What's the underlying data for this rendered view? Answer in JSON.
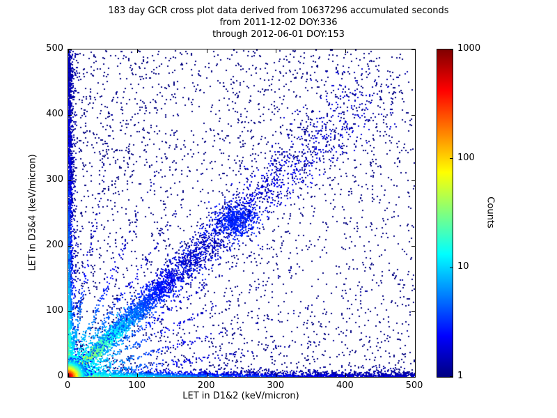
{
  "chart_data": {
    "type": "scatter-density",
    "title": "183 day GCR cross plot data derived from 10637296 accumulated seconds",
    "subtitle_from": "from 2011-12-02 DOY:336",
    "subtitle_through": "through 2012-06-01 DOY:153",
    "xlabel": "LET in D1&2 (keV/micron)",
    "ylabel": "LET in D3&4 (keV/micron)",
    "xlim": [
      0,
      500
    ],
    "ylim": [
      0,
      500
    ],
    "xticks": [
      0,
      100,
      200,
      300,
      400,
      500
    ],
    "yticks": [
      0,
      100,
      200,
      300,
      400,
      500
    ],
    "grid": false,
    "colorbar": {
      "label": "Counts",
      "scale": "log",
      "min": 1,
      "max": 1000,
      "ticks": [
        1,
        10,
        100,
        1000
      ],
      "colormap": "jet",
      "stops": [
        [
          0,
          "#000080"
        ],
        [
          0.125,
          "#0000ff"
        ],
        [
          0.375,
          "#00ffff"
        ],
        [
          0.625,
          "#ffff00"
        ],
        [
          0.875,
          "#ff0000"
        ],
        [
          1,
          "#800000"
        ]
      ]
    },
    "features": [
      "very dense hot spot at the origin with counts approaching 1000 (red core, yellow/green/cyan halo out to ~25 keV/micron)",
      "strong diagonal correlation band along y = x extending to ~330 keV/micron, yellow-green near the origin fading to blue, with a denser blue clump near (240, 240)",
      "enhanced count columns along x = 0 and rows along y = 0 spanning the full 0-500 range, cyan near the origin",
      "faint radial streaks fanning out from the origin at several slopes",
      "sparse isolated single-count (dark blue) events scattered over the whole plane, denser toward low LET and in the upper-middle region"
    ],
    "seed": 20111202,
    "clusters": [
      {
        "type": "uniform",
        "n": 1200,
        "pow": 1.0,
        "c": 1
      },
      {
        "type": "uniform",
        "n": 1600,
        "pow": 1.8,
        "c": 1
      },
      {
        "type": "box",
        "n": 280,
        "x0": 230,
        "x1": 470,
        "y0": 310,
        "y1": 500,
        "c": 1
      },
      {
        "type": "box",
        "n": 150,
        "x0": 15,
        "x1": 160,
        "y0": 300,
        "y1": 495,
        "c": 1
      },
      {
        "type": "diagonal",
        "dist": "exp",
        "n": 3600,
        "tScale": 110,
        "tMax": 500,
        "spread0": 1.5,
        "spreadK": 0.055,
        "amp": 100,
        "cScale": 30
      },
      {
        "type": "diagonal",
        "dist": "flat",
        "n": 800,
        "tMax": 430,
        "spread0": 2.0,
        "spreadK": 0.06,
        "amp": 4,
        "cScale": 200
      },
      {
        "type": "clump",
        "n": 450,
        "cx": 242,
        "cy": 238,
        "sx": 14,
        "sy": 12,
        "c": 3
      },
      {
        "type": "vband",
        "n": 1800,
        "xScale": 3.0,
        "yPow": 1.7,
        "amp": 80,
        "cScale": 55
      },
      {
        "type": "vband",
        "n": 600,
        "xScale": 1.8,
        "yPow": 1.0,
        "amp": 30,
        "cScale": 110
      },
      {
        "type": "hband",
        "n": 1700,
        "yScale": 3.0,
        "xPow": 1.5,
        "amp": 70,
        "cScale": 60
      },
      {
        "type": "hband",
        "n": 500,
        "yScale": 1.8,
        "xPow": 1.0,
        "amp": 25,
        "cScale": 120
      },
      {
        "type": "streak",
        "angle": 8,
        "n": 200,
        "tScale": 110,
        "amp": 22,
        "cScale": 55,
        "spread": 2.2
      },
      {
        "type": "streak",
        "angle": 17,
        "n": 200,
        "tScale": 110,
        "amp": 22,
        "cScale": 55,
        "spread": 2.2
      },
      {
        "type": "streak",
        "angle": 27,
        "n": 200,
        "tScale": 110,
        "amp": 22,
        "cScale": 55,
        "spread": 2.2
      },
      {
        "type": "streak",
        "angle": 35,
        "n": 200,
        "tScale": 110,
        "amp": 22,
        "cScale": 55,
        "spread": 2.2
      },
      {
        "type": "streak",
        "angle": 50,
        "n": 200,
        "tScale": 110,
        "amp": 22,
        "cScale": 55,
        "spread": 2.2
      },
      {
        "type": "streak",
        "angle": 58,
        "n": 200,
        "tScale": 110,
        "amp": 22,
        "cScale": 55,
        "spread": 2.2
      },
      {
        "type": "streak",
        "angle": 68,
        "n": 200,
        "tScale": 110,
        "amp": 22,
        "cScale": 55,
        "spread": 2.2
      },
      {
        "type": "streak",
        "angle": 81,
        "n": 200,
        "tScale": 110,
        "amp": 22,
        "cScale": 55,
        "spread": 2.2
      },
      {
        "type": "origin",
        "n": 5200,
        "scale": 5.5,
        "amp": 1000,
        "cScale": 4.5
      }
    ]
  }
}
